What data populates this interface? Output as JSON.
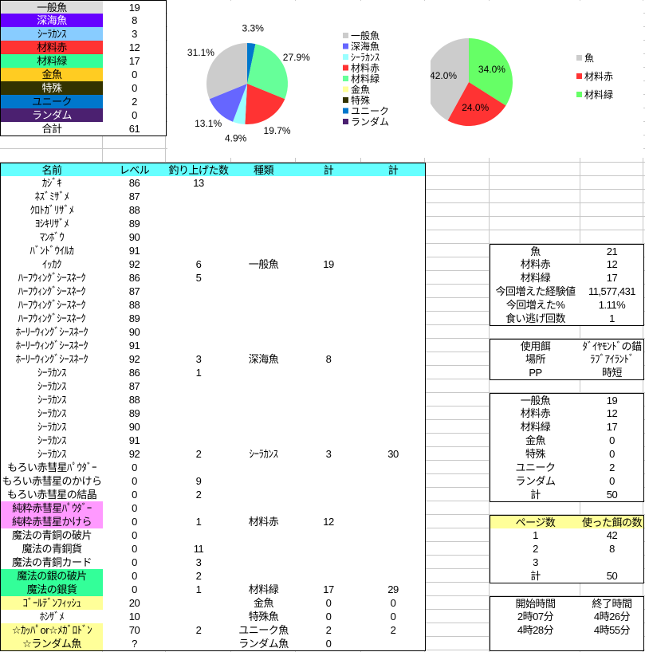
{
  "summary": [
    {
      "label": "一般魚",
      "value": "19",
      "bg": "#dddddd",
      "fg": "#000000"
    },
    {
      "label": "深海魚",
      "value": "8",
      "bg": "#6600ff",
      "fg": "#ffffff"
    },
    {
      "label": "ｼｰﾗｶﾝｽ",
      "value": "3",
      "bg": "#88ccff",
      "fg": "#000000"
    },
    {
      "label": "材料赤",
      "value": "12",
      "bg": "#ff3333",
      "fg": "#000000"
    },
    {
      "label": "材料緑",
      "value": "17",
      "bg": "#33ff99",
      "fg": "#000000"
    },
    {
      "label": "金魚",
      "value": "0",
      "bg": "#ffcc22",
      "fg": "#000000"
    },
    {
      "label": "特殊",
      "value": "0",
      "bg": "#333300",
      "fg": "#ffffff"
    },
    {
      "label": "ユニーク",
      "value": "2",
      "bg": "#0077cc",
      "fg": "#000000"
    },
    {
      "label": "ランダム",
      "value": "0",
      "bg": "#4b2070",
      "fg": "#ffffff"
    },
    {
      "label": "合計",
      "value": "61",
      "bg": "#ffffff",
      "fg": "#000000"
    }
  ],
  "main_table": {
    "header_bg": "#66ffff",
    "headers": [
      "名前",
      "レベル",
      "釣り上げた数",
      "種類",
      "計",
      "計"
    ],
    "rows": [
      {
        "c": [
          "ｶｼﾞｷ",
          "86",
          "13",
          "",
          "",
          ""
        ]
      },
      {
        "c": [
          "ﾈｽﾞﾐｻﾞﾒ",
          "87",
          "",
          "",
          "",
          ""
        ]
      },
      {
        "c": [
          "ｸﾛﾄｶﾞﾘｻﾞﾒ",
          "88",
          "",
          "",
          "",
          ""
        ]
      },
      {
        "c": [
          "ﾖｼｷﾘｻﾞﾒ",
          "89",
          "",
          "",
          "",
          ""
        ]
      },
      {
        "c": [
          "ﾏﾝﾎﾞｳ",
          "90",
          "",
          "",
          "",
          ""
        ]
      },
      {
        "c": [
          "ﾊﾞﾝﾄﾞｳｲﾙｶ",
          "91",
          "",
          "",
          "",
          ""
        ]
      },
      {
        "c": [
          "ｲｯｶｸ",
          "92",
          "6",
          "一般魚",
          "19",
          ""
        ],
        "end": true
      },
      {
        "c": [
          "ﾊｰﾌｳｨﾝｸﾞｼｰｽﾈｰｸ",
          "86",
          "5",
          "",
          "",
          ""
        ]
      },
      {
        "c": [
          "ﾊｰﾌｳｨﾝｸﾞｼｰｽﾈｰｸ",
          "87",
          "",
          "",
          "",
          ""
        ]
      },
      {
        "c": [
          "ﾊｰﾌｳｨﾝｸﾞｼｰｽﾈｰｸ",
          "88",
          "",
          "",
          "",
          ""
        ]
      },
      {
        "c": [
          "ﾊｰﾌｳｨﾝｸﾞｼｰｽﾈｰｸ",
          "89",
          "",
          "",
          "",
          ""
        ]
      },
      {
        "c": [
          "ﾎｰﾘｰｳｨﾝｸﾞｼｰｽﾈｰｸ",
          "90",
          "",
          "",
          "",
          ""
        ]
      },
      {
        "c": [
          "ﾎｰﾘｰｳｨﾝｸﾞｼｰｽﾈｰｸ",
          "91",
          "",
          "",
          "",
          ""
        ]
      },
      {
        "c": [
          "ﾎｰﾘｰｳｨﾝｸﾞｼｰｽﾈｰｸ",
          "92",
          "3",
          "深海魚",
          "8",
          ""
        ],
        "end": true
      },
      {
        "c": [
          "ｼｰﾗｶﾝｽ",
          "86",
          "1",
          "",
          "",
          ""
        ]
      },
      {
        "c": [
          "ｼｰﾗｶﾝｽ",
          "87",
          "",
          "",
          "",
          ""
        ]
      },
      {
        "c": [
          "ｼｰﾗｶﾝｽ",
          "88",
          "",
          "",
          "",
          ""
        ]
      },
      {
        "c": [
          "ｼｰﾗｶﾝｽ",
          "89",
          "",
          "",
          "",
          ""
        ]
      },
      {
        "c": [
          "ｼｰﾗｶﾝｽ",
          "90",
          "",
          "",
          "",
          ""
        ]
      },
      {
        "c": [
          "ｼｰﾗｶﾝｽ",
          "91",
          "",
          "",
          "",
          ""
        ]
      },
      {
        "c": [
          "ｼｰﾗｶﾝｽ",
          "92",
          "2",
          "ｼｰﾗｶﾝｽ",
          "3",
          "30"
        ],
        "end": true
      },
      {
        "c": [
          "もろい赤彗星ﾊﾟｳﾀﾞｰ",
          "0",
          "",
          "",
          "",
          ""
        ]
      },
      {
        "c": [
          "もろい赤彗星のかけら",
          "0",
          "9",
          "",
          "",
          ""
        ]
      },
      {
        "c": [
          "もろい赤彗星の結晶",
          "0",
          "2",
          "",
          "",
          ""
        ]
      },
      {
        "c": [
          "純粋赤彗星ﾊﾟｳﾀﾞｰ",
          "0",
          "",
          "",
          "",
          ""
        ],
        "bg": "#ff99ff"
      },
      {
        "c": [
          "純粋赤彗星かけら",
          "0",
          "1",
          "材料赤",
          "12",
          ""
        ],
        "bg": "#ff99ff",
        "end": true
      },
      {
        "c": [
          "魔法の青銅の破片",
          "0",
          "",
          "",
          "",
          ""
        ]
      },
      {
        "c": [
          "魔法の青銅貨",
          "0",
          "11",
          "",
          "",
          ""
        ]
      },
      {
        "c": [
          "魔法の青銅カード",
          "0",
          "3",
          "",
          "",
          ""
        ]
      },
      {
        "c": [
          "魔法の銀の破片",
          "0",
          "2",
          "",
          "",
          ""
        ],
        "bg": "#33ff99"
      },
      {
        "c": [
          "魔法の銀貨",
          "0",
          "1",
          "材料緑",
          "17",
          "29"
        ],
        "bg": "#33ff99",
        "end": true
      },
      {
        "c": [
          "ｺﾞｰﾙﾃﾞﾝﾌｨｯｼｭ",
          "20",
          "",
          "金魚",
          "0",
          "0"
        ],
        "bg": "#ffff99",
        "end": true
      },
      {
        "c": [
          "ﾎｼｻﾞﾒ",
          "10",
          "",
          "特殊魚",
          "0",
          "0"
        ],
        "end": true
      },
      {
        "c": [
          "☆ｶｯﾊﾟor☆ﾒｶﾞﾛﾄﾞﾝ",
          "70",
          "2",
          "ユニーク魚",
          "2",
          "2"
        ],
        "bg": "#ffff99",
        "end": true
      },
      {
        "c": [
          "☆ランダム魚",
          "?",
          "",
          "ランダム魚",
          "0",
          ""
        ],
        "bg": "#ffff99",
        "end": true
      }
    ]
  },
  "right_tables": {
    "results": [
      [
        "魚",
        "21"
      ],
      [
        "材料赤",
        "12"
      ],
      [
        "材料緑",
        "17"
      ],
      [
        "今回増えた経験値",
        "11,577,431"
      ],
      [
        "今回増えた%",
        "1.11%"
      ],
      [
        "食い逃げ回数",
        "1"
      ]
    ],
    "setup": [
      [
        "使用餌",
        "ﾀﾞｲﾔﾓﾝﾄﾞの錨"
      ],
      [
        "場所",
        "ﾗﾌﾞｱｲﾗﾝﾄﾞ"
      ],
      [
        "PP",
        "時短"
      ]
    ],
    "categories": [
      [
        "一般魚",
        "19"
      ],
      [
        "材料赤",
        "12"
      ],
      [
        "材料緑",
        "17"
      ],
      [
        "金魚",
        "0"
      ],
      [
        "特殊",
        "0"
      ],
      [
        "ユニーク",
        "2"
      ],
      [
        "ランダム",
        "0"
      ],
      [
        "計",
        "50"
      ]
    ],
    "pages_header": [
      "ページ数",
      "使った餌の数"
    ],
    "pages_header_bg": "#ffff99",
    "pages": [
      [
        "1",
        "42"
      ],
      [
        "2",
        "8"
      ],
      [
        "3",
        ""
      ],
      [
        "計",
        "50"
      ]
    ],
    "times_header": [
      "開始時間",
      "終了時間"
    ],
    "times": [
      [
        "2時07分",
        "4時26分"
      ],
      [
        "4時28分",
        "4時55分"
      ],
      [
        "",
        ""
      ]
    ]
  },
  "chart_data": [
    {
      "type": "pie",
      "categories": [
        "一般魚",
        "深海魚",
        "ｼｰﾗｶﾝｽ",
        "材料赤",
        "材料緑",
        "金魚",
        "特殊",
        "ユニーク",
        "ランダム"
      ],
      "values": [
        19,
        8,
        3,
        12,
        17,
        0,
        0,
        2,
        0
      ],
      "colors": [
        "#cccccc",
        "#6666ff",
        "#99ffff",
        "#ff3333",
        "#66ff99",
        "#ffff99",
        "#333300",
        "#0077cc",
        "#4b2070"
      ],
      "data_labels": [
        "31.1%",
        "13.1%",
        "4.9%",
        "19.7%",
        "27.9%",
        "",
        "",
        "3.3%",
        ""
      ],
      "legend": "right"
    },
    {
      "type": "pie",
      "categories": [
        "魚",
        "材料赤",
        "材料緑"
      ],
      "values": [
        21,
        12,
        17
      ],
      "colors": [
        "#cccccc",
        "#ff3333",
        "#66ff66"
      ],
      "data_labels": [
        "42.0%",
        "24.0%",
        "34.0%"
      ],
      "legend": "right"
    }
  ]
}
